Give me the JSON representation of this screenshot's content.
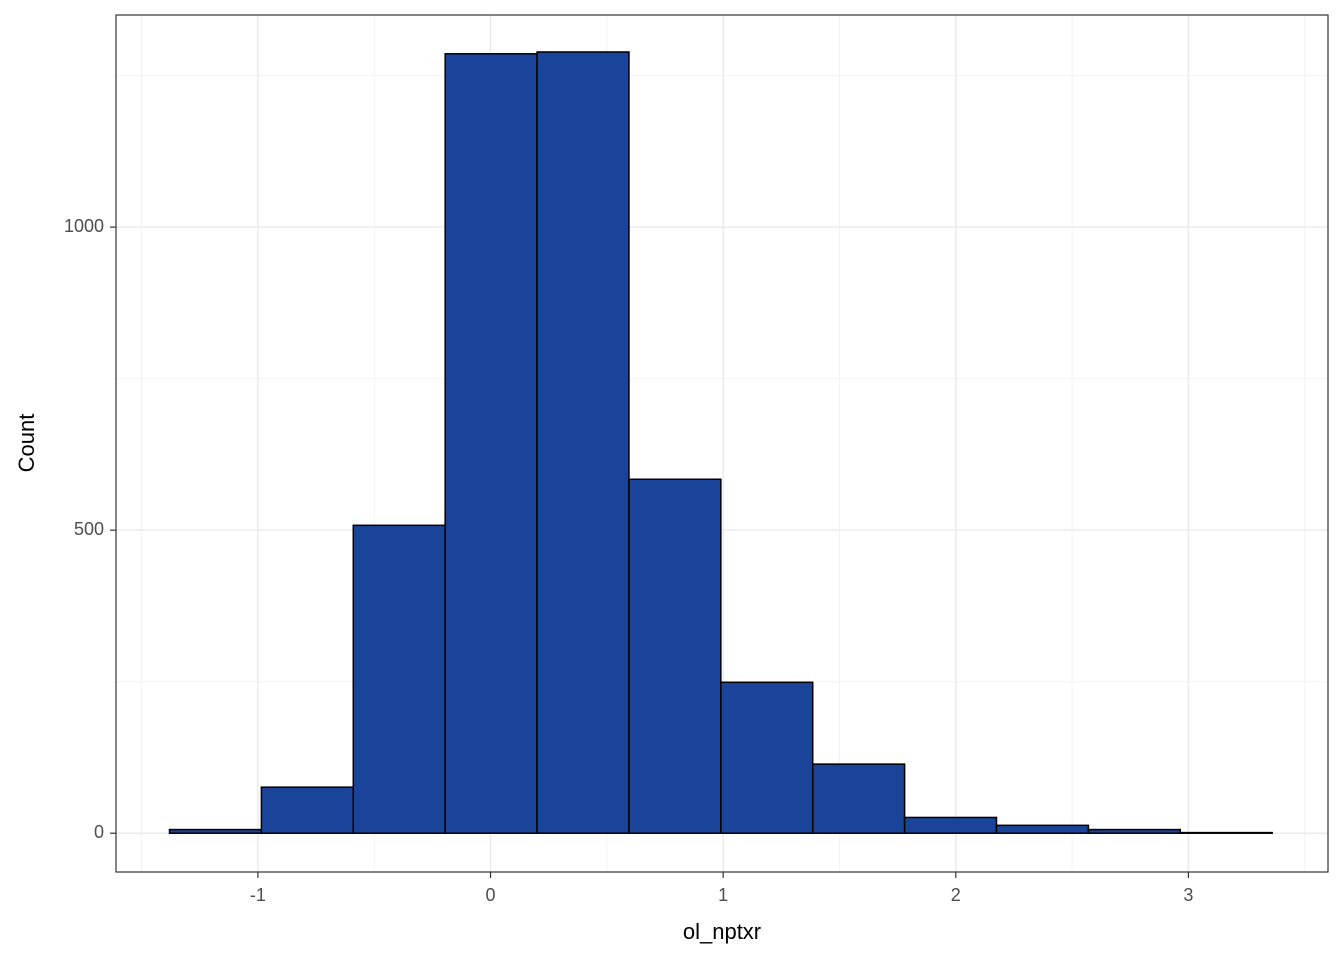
{
  "chart_data": {
    "type": "histogram",
    "x_label": "ol_nptxr",
    "y_label": "Count",
    "bins": [
      -1.38,
      -0.985,
      -0.59,
      -0.195,
      0.2,
      0.595,
      0.99,
      1.385,
      1.78,
      2.175,
      2.57,
      2.965,
      3.36
    ],
    "values": [
      6,
      76,
      508,
      1286,
      1289,
      584,
      249,
      114,
      26,
      13,
      6,
      1
    ],
    "color": "#1a4499",
    "edge_color": "#000000",
    "xlim": [
      -1.61,
      3.6
    ],
    "xticks": [
      -1,
      0,
      1,
      2,
      3
    ],
    "ylim": [
      -64,
      1350
    ],
    "yticks": [
      0,
      500,
      1000
    ],
    "grid": true
  }
}
